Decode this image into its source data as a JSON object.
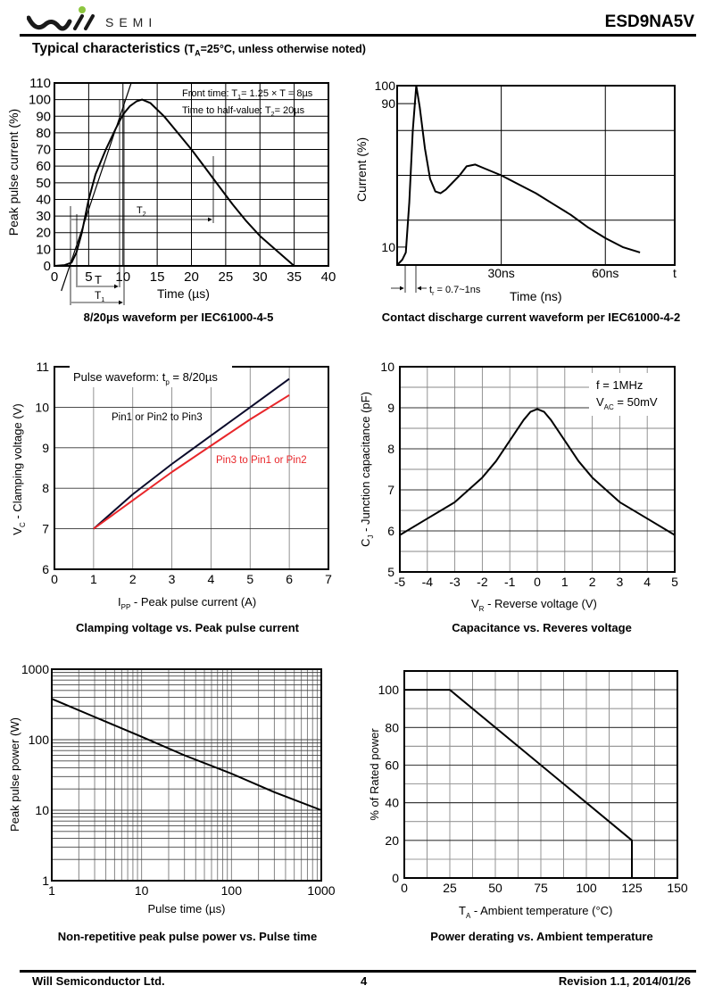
{
  "header": {
    "logo_text": "SEMI",
    "part_number": "ESD9NA5V",
    "section_title": "Typical characteristics",
    "section_condition": "(T",
    "section_condition_sub": "A",
    "section_condition_rest": "=25°C, unless otherwise noted)",
    "logo_dot_color": "#8dc63f"
  },
  "footer": {
    "company": "Will Semiconductor Ltd.",
    "page": "4",
    "revision": "Revision 1.1, 2014/01/26"
  },
  "chart_data": [
    {
      "id": "surge-waveform",
      "type": "line",
      "title": "8/20µs waveform per IEC61000-4-5",
      "xlabel": "Time (µs)",
      "ylabel": "Peak pulse current (%)",
      "xlim": [
        0,
        40
      ],
      "ylim": [
        0,
        110
      ],
      "xticks": [
        0,
        5,
        10,
        15,
        20,
        25,
        30,
        35,
        40
      ],
      "yticks": [
        0,
        10,
        20,
        30,
        40,
        50,
        60,
        70,
        80,
        90,
        100,
        110
      ],
      "grid": true,
      "annotations": [
        "Front time: T1 = 1.25 × T = 8µs",
        "Time to half-value: T2 = 20µs",
        "T",
        "T1",
        "T2"
      ],
      "series": [
        {
          "name": "waveform",
          "x": [
            0,
            1.5,
            2.5,
            3.2,
            4,
            5,
            6,
            7.5,
            9,
            10,
            11,
            12,
            12.8,
            14,
            16,
            18,
            20,
            22,
            24,
            26,
            28,
            30,
            32.5,
            35
          ],
          "y": [
            0,
            0.5,
            2,
            8,
            20,
            40,
            55,
            70,
            83,
            91,
            96,
            99,
            100,
            98,
            90,
            80,
            70,
            59,
            48,
            37,
            27,
            18,
            9,
            0
          ]
        },
        {
          "name": "front-tangent",
          "x": [
            1,
            11.2
          ],
          "y": [
            -15,
            110
          ]
        }
      ]
    },
    {
      "id": "esd-waveform",
      "type": "line",
      "title": "Contact discharge current waveform per IEC61000-4-2",
      "xlabel": "Time (ns)",
      "ylabel": "Current (%)",
      "xlim": [
        0,
        80
      ],
      "ylim": [
        0,
        100
      ],
      "xtick_labels": [
        {
          "v": 30,
          "t": "30ns"
        },
        {
          "v": 60,
          "t": "60ns"
        },
        {
          "v": 80,
          "t": "t"
        }
      ],
      "ytick_labels": [
        {
          "v": 100,
          "t": "100"
        },
        {
          "v": 90,
          "t": "90"
        },
        {
          "v": 10,
          "t": "10"
        }
      ],
      "annotations": [
        "tr = 0.7~1ns"
      ],
      "series": [
        {
          "name": "esd-current",
          "x": [
            0,
            1.5,
            2.5,
            3.5,
            4.5,
            5.5,
            6.5,
            8,
            9.5,
            11,
            12.5,
            14,
            16,
            18,
            20,
            22.5,
            25,
            30,
            35,
            40,
            45,
            50,
            55,
            60,
            65,
            70
          ],
          "y": [
            0,
            3,
            7,
            35,
            75,
            100,
            88,
            65,
            48,
            41,
            40,
            42,
            46,
            50,
            55,
            56,
            54,
            50,
            45,
            40,
            34,
            28,
            21,
            15,
            10,
            7
          ]
        }
      ]
    },
    {
      "id": "clamping",
      "type": "line",
      "title": "Clamping voltage vs. Peak pulse current",
      "xlabel": "IPP - Peak pulse current (A)",
      "ylabel": "VC - Clamping voltage (V)",
      "xlim": [
        0,
        7
      ],
      "ylim": [
        6,
        11
      ],
      "xticks": [
        0,
        1,
        2,
        3,
        4,
        5,
        6,
        7
      ],
      "yticks": [
        6,
        7,
        8,
        9,
        10,
        11
      ],
      "grid": true,
      "annotation": "Pulse waveform: tp = 8/20µs",
      "series": [
        {
          "name": "Pin1 or Pin2 to Pin3",
          "color": "#0a0a2a",
          "x": [
            1,
            2,
            3,
            4,
            5,
            6
          ],
          "y": [
            7.0,
            7.85,
            8.6,
            9.3,
            10.0,
            10.7
          ]
        },
        {
          "name": "Pin3 to Pin1 or Pin2",
          "color": "#e8262a",
          "x": [
            1,
            2,
            3,
            4,
            5,
            6
          ],
          "y": [
            7.0,
            7.7,
            8.4,
            9.05,
            9.7,
            10.3
          ]
        }
      ]
    },
    {
      "id": "capacitance",
      "type": "line",
      "title": "Capacitance vs. Reveres voltage",
      "xlabel": "VR - Reverse voltage (V)",
      "ylabel": "CJ - Junction capacitance (pF)",
      "xlim": [
        -5,
        5
      ],
      "ylim": [
        5,
        10
      ],
      "xticks": [
        -5,
        -4,
        -3,
        -2,
        -1,
        0,
        1,
        2,
        3,
        4,
        5
      ],
      "yticks": [
        5,
        6,
        7,
        8,
        9,
        10
      ],
      "grid": true,
      "annotation": [
        "f = 1MHz",
        "VAC = 50mV"
      ],
      "series": [
        {
          "name": "Cj",
          "x": [
            -5,
            -4,
            -3,
            -2,
            -1.5,
            -1,
            -0.5,
            -0.25,
            0,
            0.25,
            0.5,
            1,
            1.5,
            2,
            3,
            4,
            5
          ],
          "y": [
            5.9,
            6.3,
            6.7,
            7.3,
            7.7,
            8.2,
            8.7,
            8.9,
            8.97,
            8.9,
            8.7,
            8.2,
            7.7,
            7.3,
            6.7,
            6.3,
            5.9
          ]
        }
      ]
    },
    {
      "id": "pulse-power",
      "type": "line",
      "title": "Non-repetitive peak pulse power vs. Pulse time",
      "xlabel": "Pulse time (µs)",
      "ylabel": "Peak pulse power (W)",
      "xscale": "log",
      "yscale": "log",
      "xlim": [
        1,
        1000
      ],
      "ylim": [
        1,
        1000
      ],
      "xticks": [
        1,
        10,
        100,
        1000
      ],
      "yticks": [
        1,
        10,
        100,
        1000
      ],
      "grid": true,
      "series": [
        {
          "name": "Ppk",
          "x": [
            1,
            3,
            10,
            30,
            100,
            300,
            1000
          ],
          "y": [
            380,
            210,
            110,
            60,
            33,
            18,
            10
          ]
        }
      ]
    },
    {
      "id": "derating",
      "type": "line",
      "title": "Power derating vs. Ambient temperature",
      "xlabel": "TA - Ambient temperature (°C)",
      "ylabel": "% of Rated power",
      "xlim": [
        0,
        150
      ],
      "ylim": [
        0,
        110
      ],
      "xticks": [
        0,
        25,
        50,
        75,
        100,
        125,
        150
      ],
      "yticks": [
        0,
        20,
        40,
        60,
        80,
        100
      ],
      "grid": true,
      "series": [
        {
          "name": "derating",
          "x": [
            0,
            25,
            125,
            125
          ],
          "y": [
            100,
            100,
            20,
            0
          ]
        }
      ]
    }
  ],
  "captions": {
    "c1": "8/20µs waveform per IEC61000-4-5",
    "c2": "Contact discharge current waveform per IEC61000-4-2",
    "c3": "Clamping voltage vs. Peak pulse current",
    "c4": "Capacitance vs. Reveres voltage",
    "c5": "Non-repetitive peak pulse power vs. Pulse time",
    "c6": "Power derating vs. Ambient temperature"
  },
  "labels": {
    "c1_ylabel": "Peak pulse current (%)",
    "c1_xlabel": "Time (µs)",
    "c1_note1": "Front time: T",
    "c1_note1_sub": "1",
    "c1_note1_rest": "= 1.25 × T = 8µs",
    "c1_note2": "Time to half-value: T",
    "c1_note2_sub": "2",
    "c1_note2_rest": "= 20µs",
    "c1_T": "T",
    "c1_T1": "T",
    "c1_T1_sub": "1",
    "c1_T2": "T",
    "c1_T2_sub": "2",
    "c2_ylabel": "Current (%)",
    "c2_xlabel": "Time (ns)",
    "c2_tr": "t",
    "c2_tr_sub": "r",
    "c2_tr_rest": " = 0.7~1ns",
    "c3_ylabel_main": "V",
    "c3_ylabel_sub": "C",
    "c3_ylabel_rest": " - Clamping voltage (V)",
    "c3_xlabel_main": "I",
    "c3_xlabel_sub": "PP",
    "c3_xlabel_rest": " - Peak pulse current (A)",
    "c3_note": "Pulse waveform: t",
    "c3_note_sub": "p",
    "c3_note_rest": " = 8/20µs",
    "c3_legend1": "Pin1 or Pin2 to Pin3",
    "c3_legend2": "Pin3 to Pin1 or Pin2",
    "c4_ylabel_main": "C",
    "c4_ylabel_sub": "J",
    "c4_ylabel_rest": " - Junction capacitance (pF)",
    "c4_xlabel_main": "V",
    "c4_xlabel_sub": "R",
    "c4_xlabel_rest": " - Reverse voltage (V)",
    "c4_note1": "f = 1MHz",
    "c4_note2": "V",
    "c4_note2_sub": "AC",
    "c4_note2_rest": " = 50mV",
    "c5_ylabel": "Peak pulse power (W)",
    "c5_xlabel": "Pulse time (µs)",
    "c6_ylabel": "% of Rated power",
    "c6_xlabel_main": "T",
    "c6_xlabel_sub": "A",
    "c6_xlabel_rest": " - Ambient temperature (°C)"
  }
}
